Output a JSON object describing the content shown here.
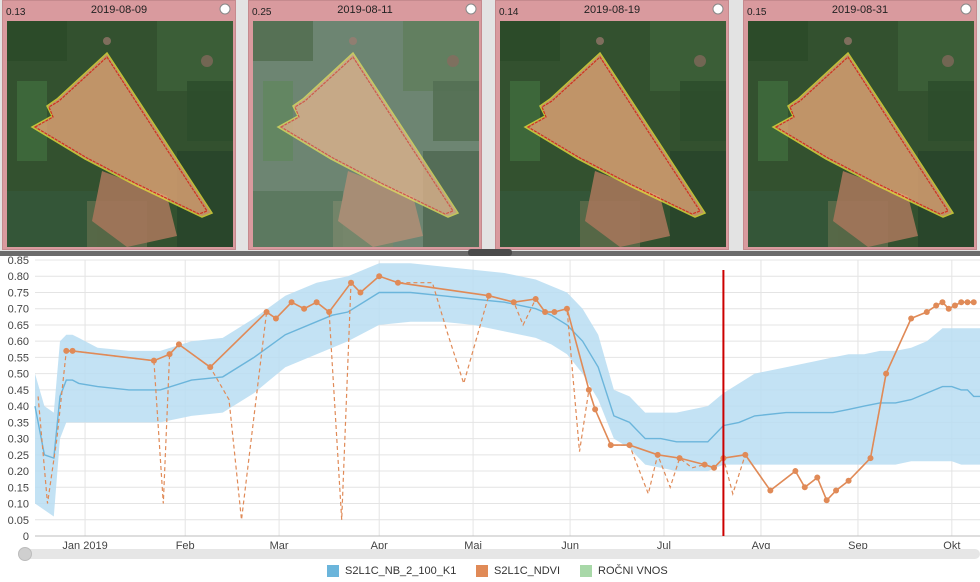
{
  "tiles": [
    {
      "cloud": "0.13",
      "date": "2019-08-09",
      "style": "clear"
    },
    {
      "cloud": "0.25",
      "date": "2019-08-11",
      "style": "hazy"
    },
    {
      "cloud": "0.14",
      "date": "2019-08-19",
      "style": "clear"
    },
    {
      "cloud": "0.15",
      "date": "2019-08-31",
      "style": "clear"
    }
  ],
  "icons": {
    "zoom": "zoom-circle-icon"
  },
  "colors": {
    "tile_border": "#d99a9e",
    "ndvi": "#e08a57",
    "nb_line": "#6bb5db",
    "nb_band": "#b9ddf2",
    "annual": "#a8d8a8",
    "cursor": "#cc0000",
    "parcel_fill": "#e8a878",
    "parcel_outline": "#e8e03a"
  },
  "chart_data": {
    "type": "line",
    "ylim": [
      0,
      0.85
    ],
    "yticks": [
      "0",
      "0.05",
      "0.10",
      "0.15",
      "0.20",
      "0.25",
      "0.30",
      "0.35",
      "0.40",
      "0.45",
      "0.50",
      "0.55",
      "0.60",
      "0.65",
      "0.70",
      "0.75",
      "0.80",
      "0.85"
    ],
    "xticks": [
      {
        "label": "Jan 2019",
        "day": 6
      },
      {
        "label": "Feb",
        "day": 38
      },
      {
        "label": "Mar",
        "day": 68
      },
      {
        "label": "Apr",
        "day": 100
      },
      {
        "label": "Maj",
        "day": 130
      },
      {
        "label": "Jun",
        "day": 161
      },
      {
        "label": "Jul",
        "day": 191
      },
      {
        "label": "Avg",
        "day": 222
      },
      {
        "label": "Sep",
        "day": 253
      },
      {
        "label": "Okt",
        "day": 283
      }
    ],
    "x_range_days": [
      -10,
      292
    ],
    "cursor_day": 210,
    "series": [
      {
        "name": "S2L1C_NB_2_100_K1",
        "type": "band_line",
        "days": [
          -10,
          -7,
          -4,
          -2,
          0,
          2,
          4,
          10,
          20,
          30,
          40,
          50,
          60,
          70,
          80,
          85,
          90,
          100,
          110,
          120,
          130,
          140,
          150,
          155,
          160,
          165,
          170,
          175,
          180,
          185,
          190,
          195,
          200,
          205,
          210,
          215,
          220,
          230,
          240,
          245,
          250,
          255,
          260,
          265,
          270,
          275,
          280,
          283,
          286,
          288,
          290,
          292
        ],
        "mean": [
          0.4,
          0.25,
          0.24,
          0.43,
          0.48,
          0.48,
          0.47,
          0.46,
          0.45,
          0.45,
          0.48,
          0.49,
          0.55,
          0.62,
          0.66,
          0.68,
          0.69,
          0.75,
          0.75,
          0.74,
          0.73,
          0.72,
          0.7,
          0.68,
          0.65,
          0.6,
          0.52,
          0.37,
          0.35,
          0.3,
          0.3,
          0.29,
          0.29,
          0.29,
          0.34,
          0.35,
          0.37,
          0.38,
          0.38,
          0.38,
          0.39,
          0.4,
          0.41,
          0.41,
          0.42,
          0.44,
          0.46,
          0.46,
          0.45,
          0.45,
          0.43,
          0.43
        ],
        "lower": [
          0.1,
          0.08,
          0.06,
          0.3,
          0.35,
          0.35,
          0.35,
          0.35,
          0.35,
          0.35,
          0.37,
          0.38,
          0.44,
          0.52,
          0.56,
          0.58,
          0.6,
          0.65,
          0.66,
          0.66,
          0.65,
          0.63,
          0.61,
          0.59,
          0.56,
          0.5,
          0.42,
          0.3,
          0.27,
          0.22,
          0.21,
          0.2,
          0.2,
          0.2,
          0.22,
          0.22,
          0.22,
          0.22,
          0.22,
          0.22,
          0.22,
          0.22,
          0.22,
          0.22,
          0.23,
          0.23,
          0.23,
          0.23,
          0.22,
          0.22,
          0.22,
          0.22
        ],
        "upper": [
          0.5,
          0.4,
          0.38,
          0.6,
          0.62,
          0.62,
          0.61,
          0.58,
          0.57,
          0.57,
          0.6,
          0.61,
          0.67,
          0.74,
          0.78,
          0.79,
          0.8,
          0.84,
          0.84,
          0.83,
          0.82,
          0.81,
          0.79,
          0.77,
          0.75,
          0.7,
          0.62,
          0.45,
          0.43,
          0.38,
          0.38,
          0.38,
          0.39,
          0.4,
          0.44,
          0.47,
          0.5,
          0.52,
          0.54,
          0.55,
          0.56,
          0.56,
          0.57,
          0.57,
          0.58,
          0.6,
          0.64,
          0.64,
          0.64,
          0.64,
          0.64,
          0.64
        ]
      },
      {
        "name": "S2L1C_NDVI",
        "type": "points_dashed",
        "days": [
          -9,
          -6,
          -3,
          0,
          2,
          28,
          31,
          33,
          36,
          46,
          52,
          56,
          64,
          67,
          72,
          76,
          80,
          84,
          88,
          91,
          94,
          100,
          106,
          110,
          117,
          122,
          127,
          135,
          143,
          146,
          150,
          153,
          156,
          160,
          164,
          167,
          169,
          174,
          180,
          186,
          189,
          193,
          196,
          200,
          204,
          207,
          210,
          213,
          217,
          225,
          233,
          236,
          240,
          243,
          246,
          250,
          257,
          262,
          270,
          275,
          278,
          280,
          282,
          284,
          286,
          288,
          290
        ],
        "values": [
          0.43,
          0.1,
          0.3,
          0.57,
          0.57,
          0.54,
          0.1,
          0.56,
          0.59,
          0.52,
          0.42,
          0.05,
          0.69,
          0.67,
          0.72,
          0.7,
          0.72,
          0.69,
          0.05,
          0.78,
          0.75,
          0.8,
          0.78,
          0.78,
          0.78,
          0.62,
          0.47,
          0.74,
          0.72,
          0.65,
          0.73,
          0.69,
          0.69,
          0.7,
          0.26,
          0.45,
          0.39,
          0.28,
          0.28,
          0.13,
          0.25,
          0.15,
          0.24,
          0.21,
          0.22,
          0.21,
          0.24,
          0.13,
          0.25,
          0.14,
          0.2,
          0.15,
          0.18,
          0.11,
          0.14,
          0.17,
          0.24,
          0.5,
          0.67,
          0.69,
          0.71,
          0.72,
          0.7,
          0.71,
          0.72,
          0.72,
          0.72
        ],
        "solid_points": [
          3,
          4,
          5,
          7,
          8,
          9,
          12,
          13,
          14,
          15,
          16,
          17,
          19,
          20,
          21,
          22,
          27,
          28,
          30,
          31,
          32,
          33,
          35,
          36,
          37,
          38,
          40,
          42,
          44,
          45,
          46,
          48,
          49,
          50,
          51,
          52,
          53,
          54,
          55,
          56,
          57,
          58,
          59,
          60,
          61,
          62,
          63,
          64,
          65,
          66
        ]
      }
    ],
    "legend": [
      {
        "label": "S2L1C_NB_2_100_K1",
        "color": "#6bb5db"
      },
      {
        "label": "S2L1C_NDVI",
        "color": "#e08a57"
      },
      {
        "label": "ROČNI VNOS",
        "color": "#a8d8a8"
      }
    ]
  }
}
